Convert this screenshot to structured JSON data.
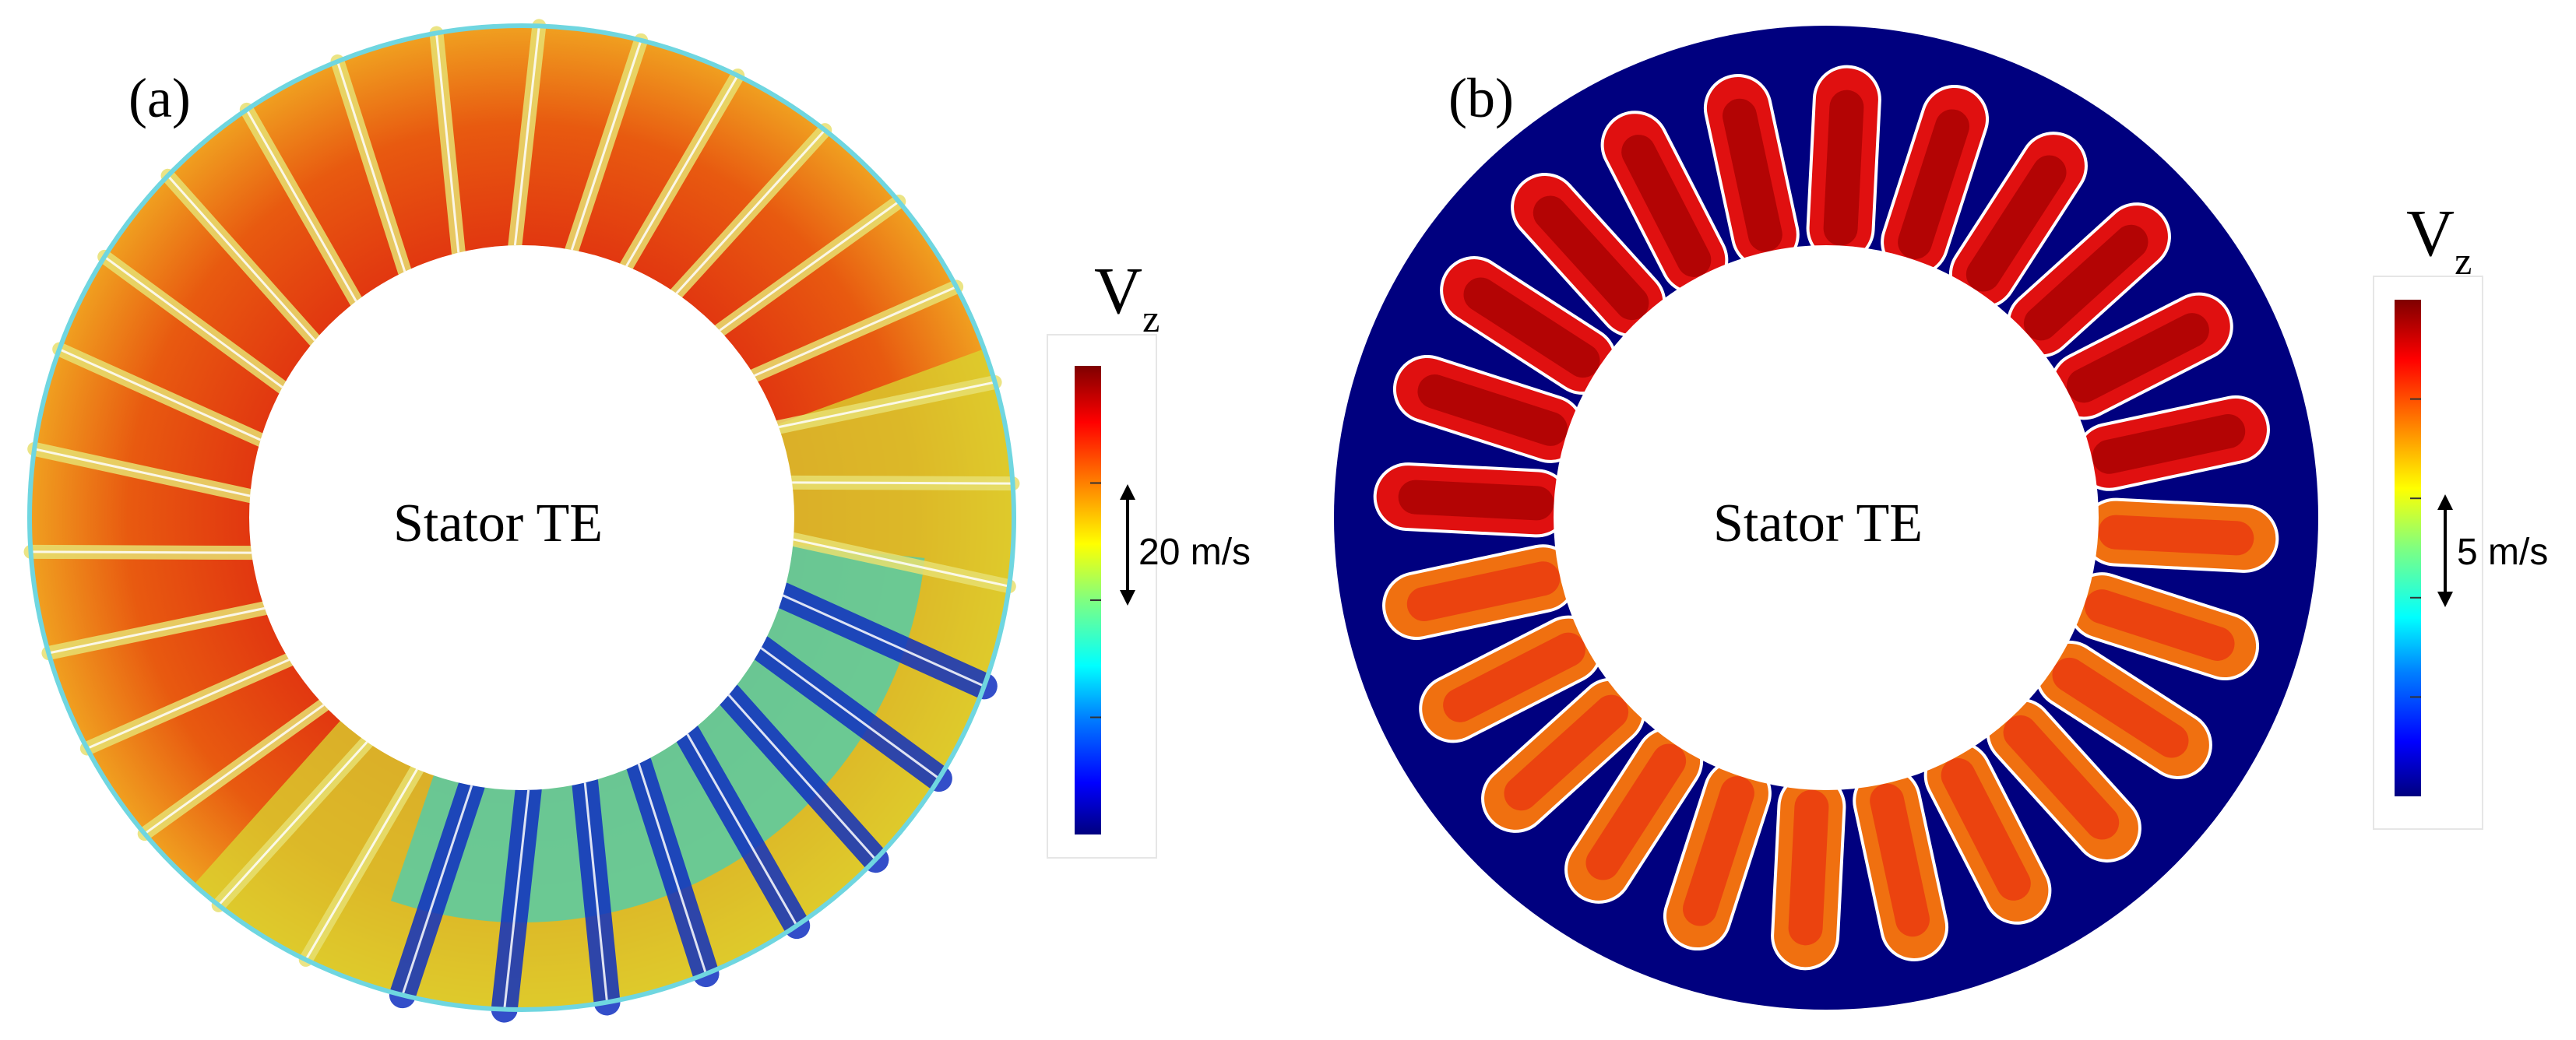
{
  "panels": [
    {
      "label": "(a)",
      "center_text": "Stator TE",
      "colorbar": {
        "title": "V",
        "subscript": "z",
        "scale_text": "20 m/s"
      }
    },
    {
      "label": "(b)",
      "center_text": "Stator TE",
      "colorbar": {
        "title": "V",
        "subscript": "z",
        "scale_text": "5 m/s"
      }
    }
  ],
  "colormap": [
    "#00007f",
    "#0000ff",
    "#0080ff",
    "#00ffff",
    "#80ff80",
    "#ffff00",
    "#ff8000",
    "#ff0000",
    "#7f0000"
  ],
  "colors": {
    "background_b": "#00007f",
    "contour": "#ffffff"
  }
}
